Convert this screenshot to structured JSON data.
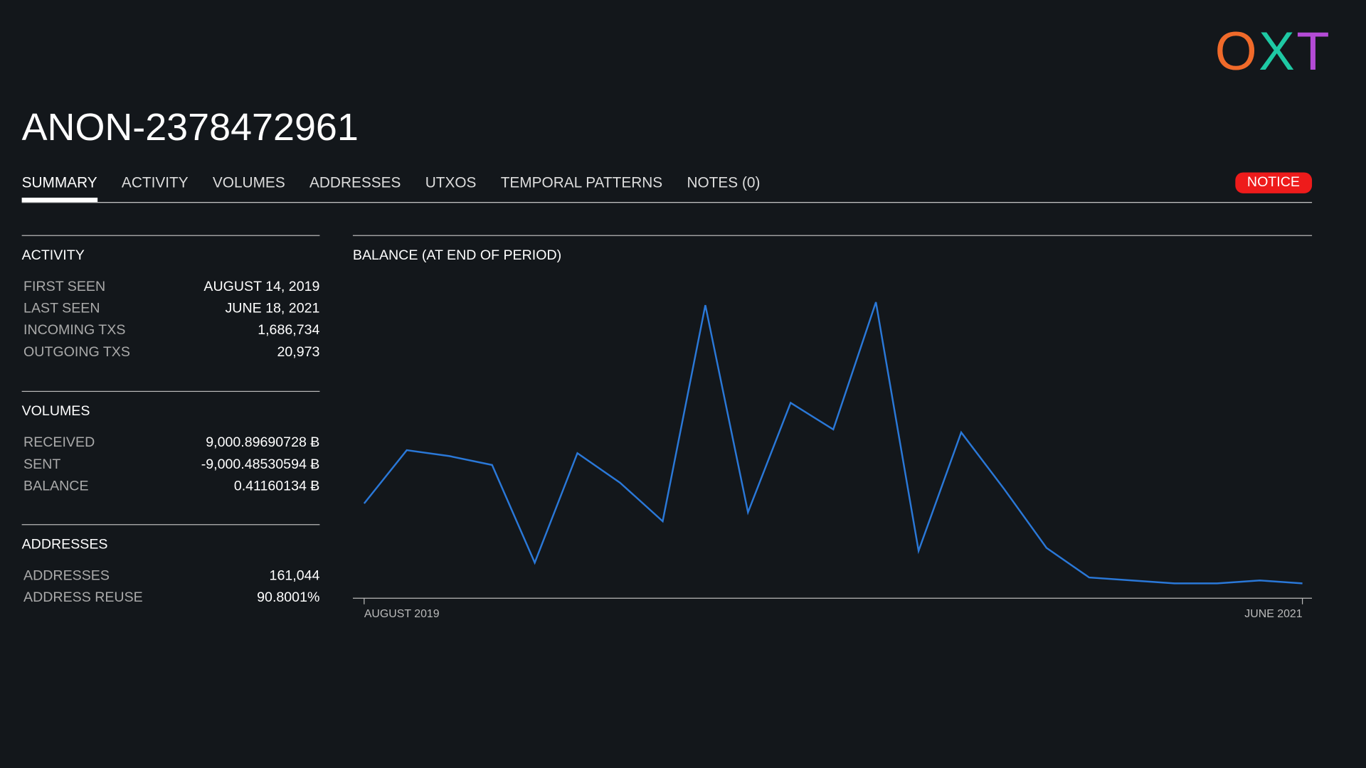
{
  "logo": {
    "letters": [
      "O",
      "X",
      "T"
    ]
  },
  "title": "ANON-2378472961",
  "tabs": [
    "SUMMARY",
    "ACTIVITY",
    "VOLUMES",
    "ADDRESSES",
    "UTXOS",
    "TEMPORAL PATTERNS",
    "NOTES (0)"
  ],
  "notice": "NOTICE",
  "sections": [
    {
      "heading": "ACTIVITY",
      "rows": [
        [
          "FIRST SEEN",
          "AUGUST 14, 2019"
        ],
        [
          "LAST SEEN",
          "JUNE 18, 2021"
        ],
        [
          "INCOMING TXS",
          "1,686,734"
        ],
        [
          "OUTGOING TXS",
          "20,973"
        ]
      ]
    },
    {
      "heading": "VOLUMES",
      "rows": [
        [
          "RECEIVED",
          "9,000.89690728 Ƀ"
        ],
        [
          "SENT",
          "-9,000.48530594 Ƀ"
        ],
        [
          "BALANCE",
          "0.41160134 Ƀ"
        ]
      ]
    },
    {
      "heading": "ADDRESSES",
      "rows": [
        [
          "ADDRESSES",
          "161,044"
        ],
        [
          "ADDRESS REUSE",
          "90.8001%"
        ]
      ]
    }
  ],
  "chart_data": {
    "type": "line",
    "title": "BALANCE (AT END OF PERIOD)",
    "categories": [
      "AUGUST 2019",
      null,
      null,
      null,
      null,
      null,
      null,
      null,
      null,
      null,
      null,
      null,
      null,
      null,
      null,
      null,
      null,
      null,
      null,
      null,
      null,
      null,
      "JUNE 2021"
    ],
    "series": [
      {
        "name": "BALANCE",
        "color": "#2a78d8",
        "values": [
          32,
          50,
          48,
          45,
          12,
          49,
          39,
          26,
          99,
          29,
          66,
          57,
          100,
          16,
          56,
          37,
          17,
          7,
          6,
          5,
          5,
          6,
          5
        ]
      }
    ],
    "ylim": [
      0,
      100
    ]
  }
}
